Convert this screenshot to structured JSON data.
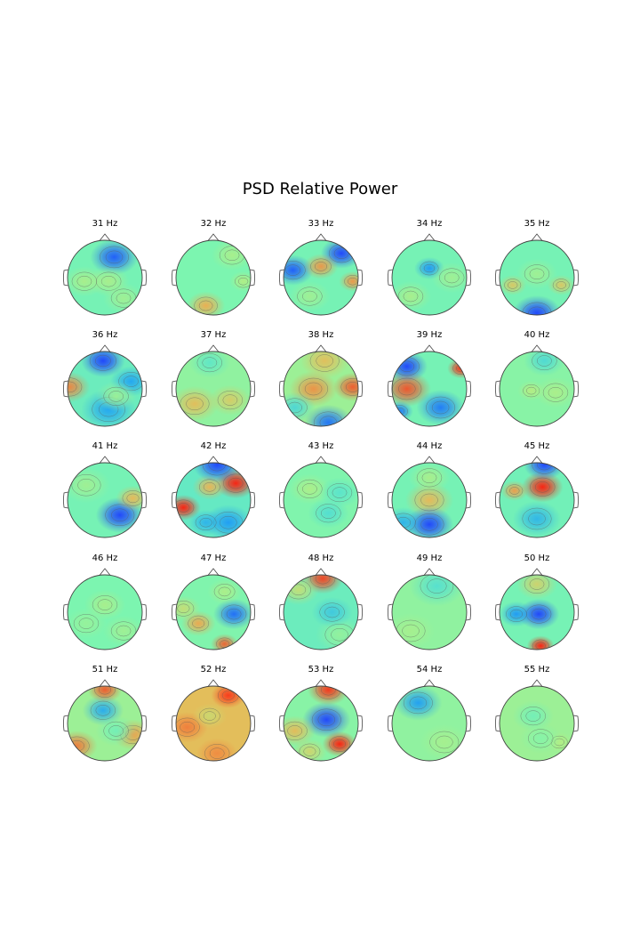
{
  "chart_data": {
    "type": "heatmap",
    "title": "PSD Relative Power",
    "colormap": "rainbow",
    "colors": {
      "low": "#1d6cff",
      "mid": "#7cf5b0",
      "high": "#ff1a0a",
      "outline": "#444444",
      "contour": "#5a5a5a"
    },
    "panels": [
      {
        "label": "31 Hz",
        "bg": 0.45,
        "blobs": [
          [
            0.25,
            -0.55,
            0.35,
            -0.35
          ],
          [
            0.1,
            0.1,
            0.3,
            0.12
          ],
          [
            -0.55,
            0.1,
            0.3,
            0.12
          ],
          [
            0.5,
            0.55,
            0.3,
            0.1
          ]
        ]
      },
      {
        "label": "32 Hz",
        "bg": 0.47,
        "blobs": [
          [
            -0.2,
            0.75,
            0.28,
            0.25
          ],
          [
            0.5,
            -0.6,
            0.3,
            0.1
          ],
          [
            0.8,
            0.1,
            0.2,
            0.12
          ]
        ]
      },
      {
        "label": "33 Hz",
        "bg": 0.45,
        "blobs": [
          [
            0.55,
            -0.65,
            0.3,
            -0.4
          ],
          [
            -0.75,
            -0.2,
            0.3,
            -0.35
          ],
          [
            0,
            -0.3,
            0.25,
            0.3
          ],
          [
            0.85,
            0.1,
            0.2,
            0.3
          ],
          [
            -0.3,
            0.5,
            0.3,
            0.1
          ]
        ]
      },
      {
        "label": "34 Hz",
        "bg": 0.45,
        "blobs": [
          [
            0,
            -0.25,
            0.22,
            -0.25
          ],
          [
            -0.5,
            0.5,
            0.3,
            0.12
          ],
          [
            0.6,
            0.0,
            0.3,
            0.1
          ]
        ]
      },
      {
        "label": "35 Hz",
        "bg": 0.45,
        "blobs": [
          [
            0,
            0.95,
            0.35,
            -0.5
          ],
          [
            -0.65,
            0.2,
            0.2,
            0.22
          ],
          [
            0.65,
            0.2,
            0.2,
            0.22
          ],
          [
            0,
            -0.1,
            0.3,
            0.1
          ]
        ]
      },
      {
        "label": "36 Hz",
        "bg": 0.42,
        "blobs": [
          [
            -0.95,
            -0.05,
            0.3,
            0.35
          ],
          [
            -0.05,
            -0.75,
            0.32,
            -0.5
          ],
          [
            0.7,
            -0.2,
            0.3,
            -0.2
          ],
          [
            0.1,
            0.55,
            0.4,
            -0.2
          ],
          [
            0.3,
            0.2,
            0.3,
            0.12
          ]
        ]
      },
      {
        "label": "37 Hz",
        "bg": 0.52,
        "blobs": [
          [
            -0.5,
            0.4,
            0.35,
            0.18
          ],
          [
            0.45,
            0.3,
            0.3,
            0.15
          ],
          [
            -0.1,
            -0.7,
            0.3,
            -0.12
          ]
        ]
      },
      {
        "label": "38 Hz",
        "bg": 0.55,
        "blobs": [
          [
            -0.2,
            0.0,
            0.35,
            0.22
          ],
          [
            0.85,
            -0.05,
            0.28,
            0.3
          ],
          [
            0.2,
            0.9,
            0.35,
            -0.4
          ],
          [
            -0.7,
            0.5,
            0.3,
            -0.2
          ],
          [
            0.1,
            -0.75,
            0.35,
            0.15
          ]
        ]
      },
      {
        "label": "39 Hz",
        "bg": 0.45,
        "blobs": [
          [
            -0.6,
            0.0,
            0.35,
            0.4
          ],
          [
            0.85,
            -0.55,
            0.2,
            0.45
          ],
          [
            -0.6,
            -0.6,
            0.3,
            -0.4
          ],
          [
            0.3,
            0.5,
            0.35,
            -0.3
          ],
          [
            -0.8,
            0.6,
            0.2,
            -0.3
          ]
        ]
      },
      {
        "label": "40 Hz",
        "bg": 0.5,
        "blobs": [
          [
            -0.15,
            0.05,
            0.2,
            0.1
          ],
          [
            0.2,
            -0.75,
            0.3,
            -0.15
          ],
          [
            0.5,
            0.1,
            0.3,
            0.08
          ]
        ]
      },
      {
        "label": "41 Hz",
        "bg": 0.45,
        "blobs": [
          [
            0.4,
            0.4,
            0.35,
            -0.4
          ],
          [
            0.75,
            -0.05,
            0.25,
            0.25
          ],
          [
            -0.5,
            -0.4,
            0.35,
            0.1
          ]
        ]
      },
      {
        "label": "42 Hz",
        "bg": 0.4,
        "blobs": [
          [
            -0.8,
            0.2,
            0.25,
            0.55
          ],
          [
            0.6,
            -0.45,
            0.3,
            0.55
          ],
          [
            -0.1,
            -0.35,
            0.25,
            0.3
          ],
          [
            0.1,
            -0.95,
            0.35,
            -0.5
          ],
          [
            0.4,
            0.6,
            0.35,
            -0.2
          ],
          [
            -0.2,
            0.6,
            0.25,
            -0.15
          ]
        ]
      },
      {
        "label": "43 Hz",
        "bg": 0.48,
        "blobs": [
          [
            0.2,
            0.35,
            0.3,
            -0.12
          ],
          [
            -0.3,
            -0.3,
            0.3,
            0.1
          ],
          [
            0.5,
            -0.2,
            0.3,
            -0.1
          ]
        ]
      },
      {
        "label": "44 Hz",
        "bg": 0.45,
        "blobs": [
          [
            0,
            0.0,
            0.35,
            0.25
          ],
          [
            0,
            0.65,
            0.35,
            -0.5
          ],
          [
            -0.7,
            0.6,
            0.3,
            -0.2
          ],
          [
            0,
            -0.6,
            0.3,
            0.12
          ]
        ]
      },
      {
        "label": "45 Hz",
        "bg": 0.44,
        "blobs": [
          [
            0.15,
            -0.35,
            0.3,
            0.6
          ],
          [
            -0.6,
            -0.25,
            0.2,
            0.3
          ],
          [
            0.2,
            -0.95,
            0.3,
            -0.5
          ],
          [
            0.0,
            0.5,
            0.35,
            -0.18
          ]
        ]
      },
      {
        "label": "46 Hz",
        "bg": 0.47,
        "blobs": [
          [
            0,
            -0.2,
            0.3,
            0.1
          ],
          [
            0.5,
            0.5,
            0.3,
            0.08
          ],
          [
            -0.5,
            0.3,
            0.3,
            0.06
          ]
        ]
      },
      {
        "label": "47 Hz",
        "bg": 0.48,
        "blobs": [
          [
            0.55,
            0.05,
            0.3,
            -0.35
          ],
          [
            0.3,
            0.85,
            0.2,
            0.35
          ],
          [
            -0.4,
            0.3,
            0.25,
            0.25
          ],
          [
            -0.8,
            -0.1,
            0.25,
            0.15
          ],
          [
            0.3,
            -0.55,
            0.25,
            0.1
          ]
        ]
      },
      {
        "label": "48 Hz",
        "bg": 0.42,
        "blobs": [
          [
            0.05,
            -0.9,
            0.3,
            0.45
          ],
          [
            -0.6,
            -0.6,
            0.3,
            0.2
          ],
          [
            0.5,
            0.6,
            0.35,
            0.1
          ],
          [
            0.3,
            0.0,
            0.3,
            -0.12
          ]
        ]
      },
      {
        "label": "49 Hz",
        "bg": 0.52,
        "blobs": [
          [
            0.2,
            -0.7,
            0.4,
            -0.15
          ],
          [
            -0.5,
            0.5,
            0.35,
            0.05
          ]
        ]
      },
      {
        "label": "50 Hz",
        "bg": 0.45,
        "blobs": [
          [
            0.05,
            0.05,
            0.3,
            -0.55
          ],
          [
            -0.55,
            0.05,
            0.25,
            -0.25
          ],
          [
            0.1,
            0.9,
            0.2,
            0.55
          ],
          [
            0,
            -0.75,
            0.3,
            0.2
          ]
        ]
      },
      {
        "label": "51 Hz",
        "bg": 0.55,
        "blobs": [
          [
            -0.05,
            -0.35,
            0.3,
            -0.3
          ],
          [
            -0.75,
            0.6,
            0.3,
            0.25
          ],
          [
            0.75,
            0.3,
            0.3,
            0.2
          ],
          [
            0.0,
            -0.9,
            0.25,
            0.3
          ],
          [
            0.3,
            0.2,
            0.3,
            -0.1
          ]
        ]
      },
      {
        "label": "52 Hz",
        "bg": 0.72,
        "blobs": [
          [
            0.4,
            -0.75,
            0.25,
            0.2
          ],
          [
            -0.7,
            0.1,
            0.3,
            0.1
          ],
          [
            0.1,
            0.8,
            0.3,
            0.08
          ],
          [
            -0.1,
            -0.2,
            0.25,
            -0.05
          ]
        ]
      },
      {
        "label": "53 Hz",
        "bg": 0.5,
        "blobs": [
          [
            0.5,
            0.55,
            0.25,
            0.5
          ],
          [
            0.15,
            -0.1,
            0.35,
            -0.45
          ],
          [
            0.2,
            -0.9,
            0.3,
            0.4
          ],
          [
            -0.7,
            0.2,
            0.3,
            0.2
          ],
          [
            -0.3,
            0.75,
            0.25,
            0.15
          ]
        ]
      },
      {
        "label": "54 Hz",
        "bg": 0.52,
        "blobs": [
          [
            -0.3,
            -0.55,
            0.35,
            -0.3
          ],
          [
            0.4,
            0.5,
            0.35,
            0.05
          ]
        ]
      },
      {
        "label": "55 Hz",
        "bg": 0.55,
        "blobs": [
          [
            -0.1,
            -0.2,
            0.3,
            -0.1
          ],
          [
            0.6,
            0.5,
            0.2,
            0.05
          ],
          [
            0.1,
            0.4,
            0.3,
            -0.05
          ]
        ]
      }
    ]
  }
}
